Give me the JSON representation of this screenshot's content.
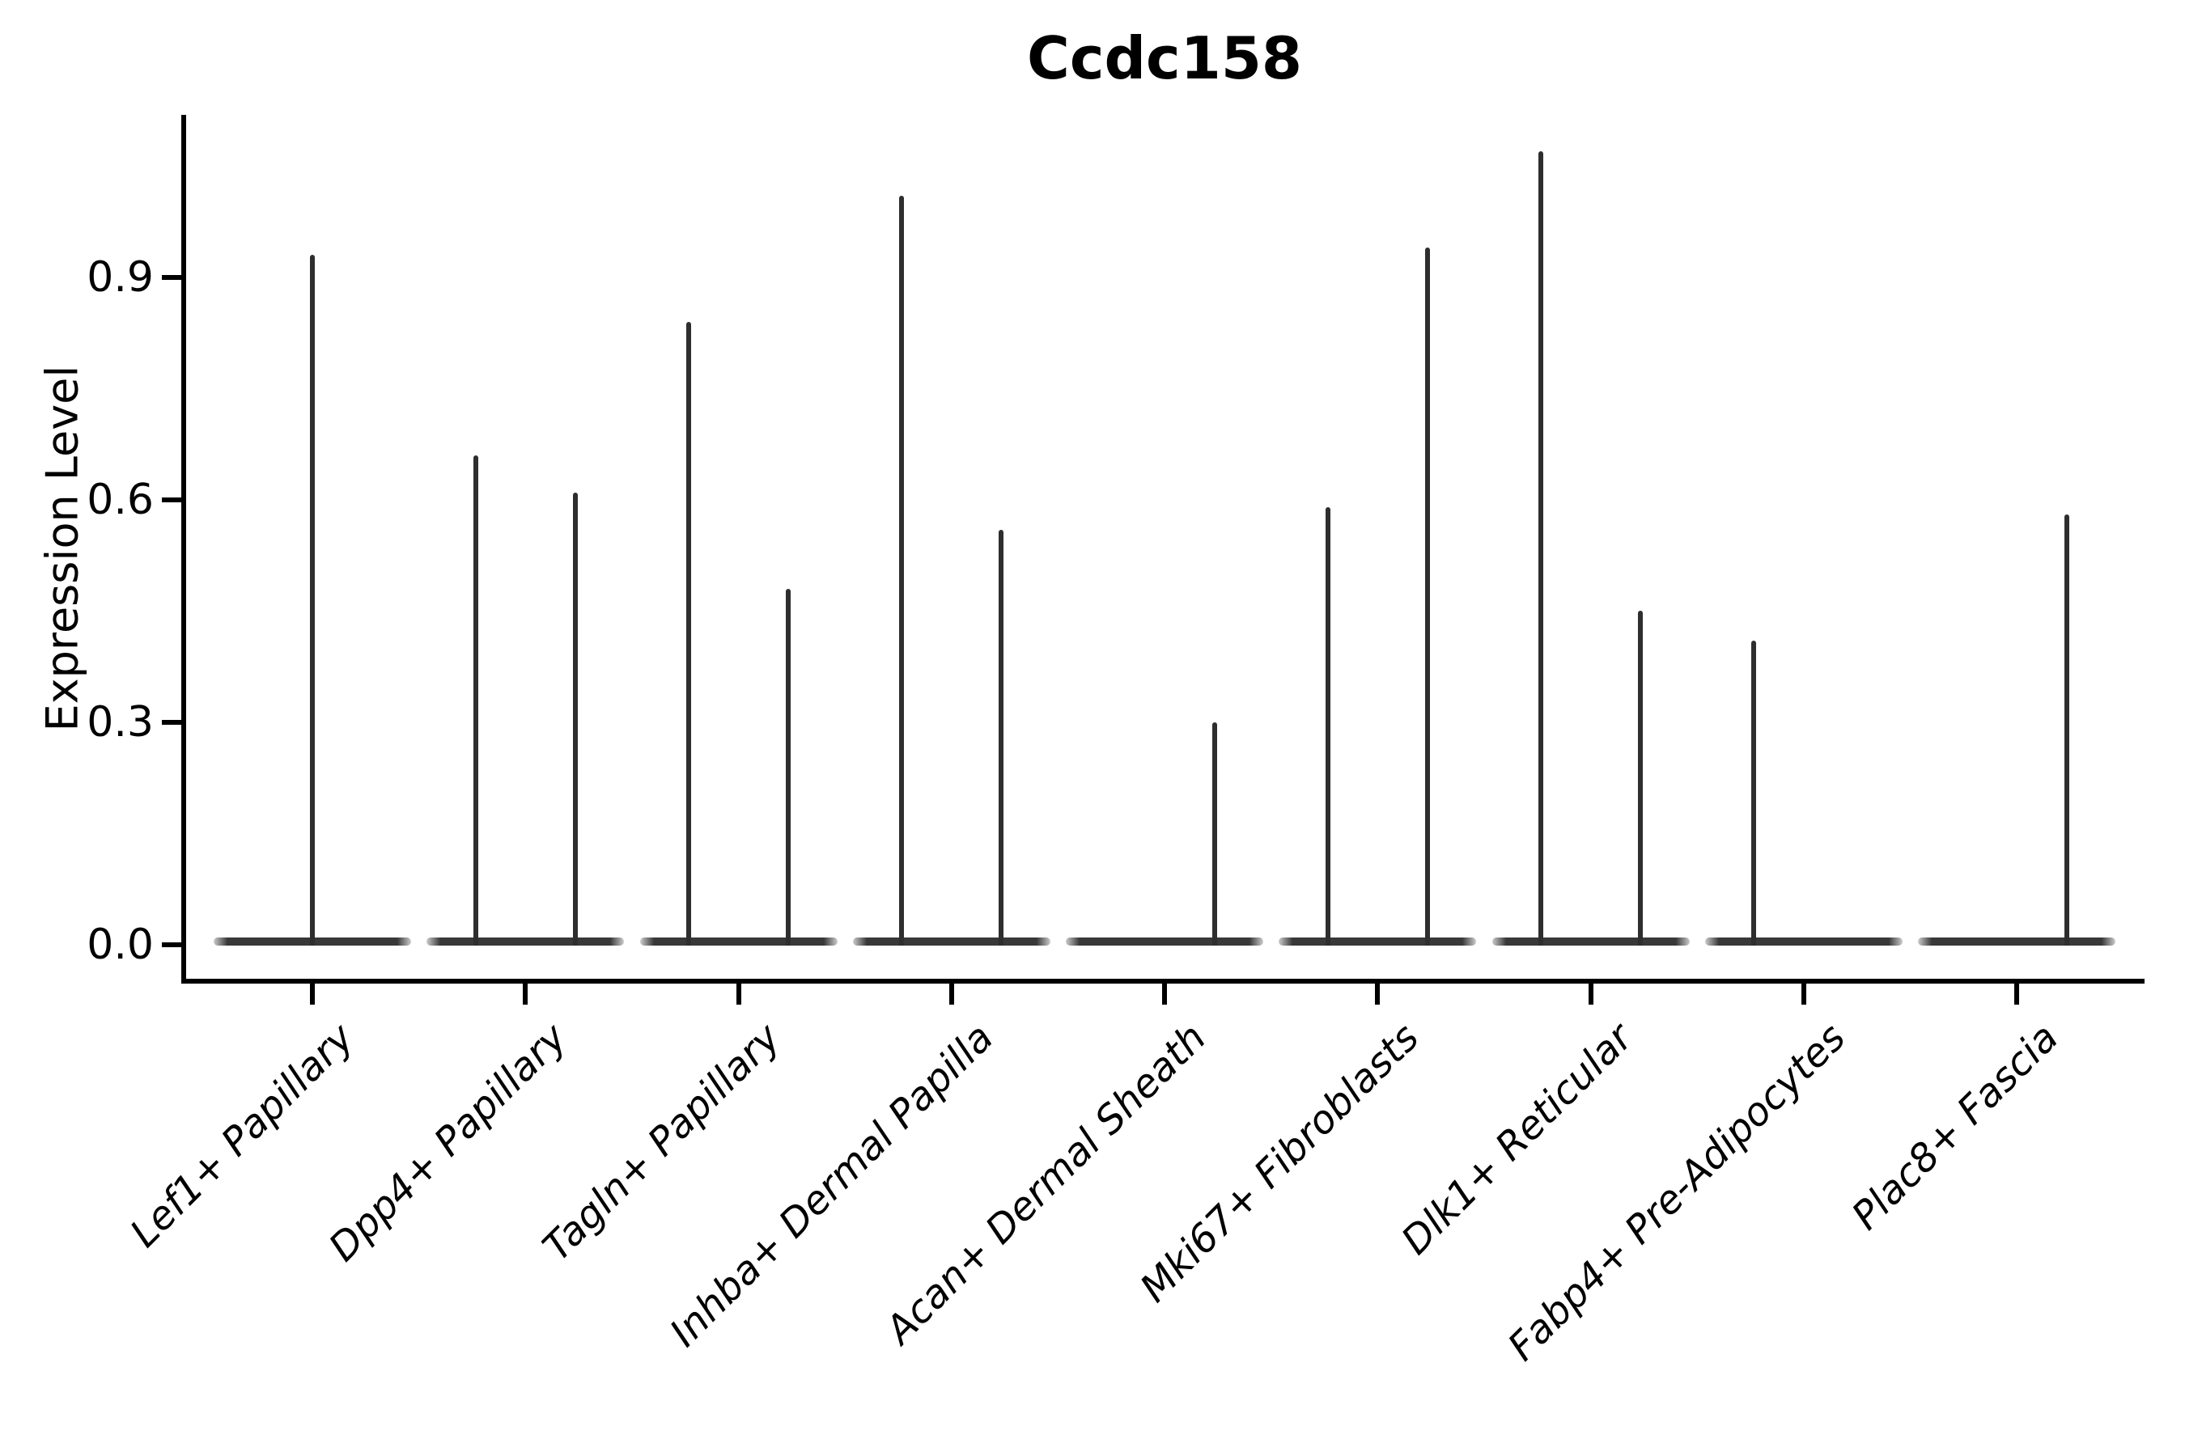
{
  "title": "Ccdc158",
  "chart_data": {
    "type": "violin",
    "title": "Ccdc158",
    "xlabel": "",
    "ylabel": "Expression Level",
    "ylim": [
      -0.05,
      1.12
    ],
    "yticks": [
      "0.0",
      "0.3",
      "0.6",
      "0.9"
    ],
    "grid": false,
    "legend": "none",
    "background": "#ffffff",
    "colors": {
      "axis": "#000000",
      "violin_stroke": "#2e2e2e",
      "violin_base": "#383838"
    },
    "categories": [
      "Lef1+ Papillary",
      "Dpp4+ Papillary",
      "Tagln+ Papillary",
      "Inhba+ Dermal Papilla",
      "Acan+ Dermal Sheath",
      "Mki67+ Fibroblasts",
      "Dlk1+ Reticular",
      "Fabp4+ Pre-Adipocytes",
      "Plac8+ Fascia"
    ],
    "series": [
      {
        "category": "Lef1+ Papillary",
        "violins": [
          {
            "side": "center",
            "max_expression": 0.93
          }
        ]
      },
      {
        "category": "Dpp4+ Papillary",
        "violins": [
          {
            "side": "left",
            "max_expression": 0.66
          },
          {
            "side": "right",
            "max_expression": 0.61
          }
        ]
      },
      {
        "category": "Tagln+ Papillary",
        "violins": [
          {
            "side": "left",
            "max_expression": 0.84
          },
          {
            "side": "right",
            "max_expression": 0.48
          }
        ]
      },
      {
        "category": "Inhba+ Dermal Papilla",
        "violins": [
          {
            "side": "left",
            "max_expression": 1.01
          },
          {
            "side": "right",
            "max_expression": 0.56
          }
        ]
      },
      {
        "category": "Acan+ Dermal Sheath",
        "violins": [
          {
            "side": "right",
            "max_expression": 0.3
          }
        ]
      },
      {
        "category": "Mki67+ Fibroblasts",
        "violins": [
          {
            "side": "left",
            "max_expression": 0.59
          },
          {
            "side": "right",
            "max_expression": 0.94
          }
        ]
      },
      {
        "category": "Dlk1+ Reticular",
        "violins": [
          {
            "side": "left",
            "max_expression": 1.07
          },
          {
            "side": "right",
            "max_expression": 0.45
          }
        ]
      },
      {
        "category": "Fabp4+ Pre-Adipocytes",
        "violins": [
          {
            "side": "left",
            "max_expression": 0.41
          }
        ]
      },
      {
        "category": "Plac8+ Fascia",
        "violins": [
          {
            "side": "right",
            "max_expression": 0.58
          }
        ]
      }
    ]
  }
}
